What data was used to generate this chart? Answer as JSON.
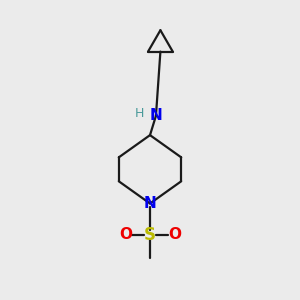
{
  "background_color": "#ebebeb",
  "bond_color": "#1a1a1a",
  "N_color": "#0000ee",
  "O_color": "#ee0000",
  "S_color": "#bbbb00",
  "H_color": "#4a9a9a",
  "line_width": 1.6,
  "figsize": [
    3.0,
    3.0
  ],
  "dpi": 100,
  "xlim": [
    0,
    10
  ],
  "ylim": [
    0,
    10
  ]
}
